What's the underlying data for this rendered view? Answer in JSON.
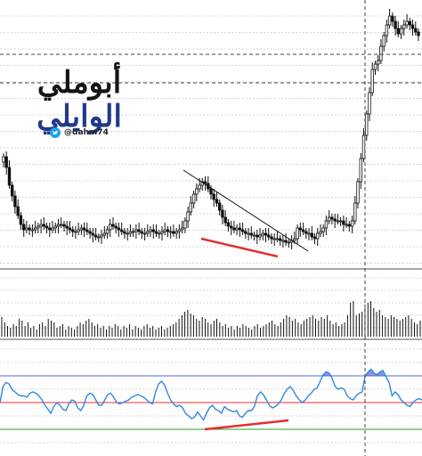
{
  "branding": {
    "name_part1": "أبوملي",
    "name_part2": "الوايلي",
    "handle": "@dahm74",
    "accent_color": "#1f3a8a",
    "icon": "twitter-bird-icon"
  },
  "colors": {
    "candle": "#111111",
    "grid": "#c8c8c8",
    "rsi_line": "#2f88e0",
    "rsi_fill": "#5b5fd6",
    "rsi_upper": "#4a6ad8",
    "rsi_mid": "#e03030",
    "rsi_lower": "#2a9a2a",
    "divergence": "#e03030",
    "trendline": "#111111"
  },
  "chart_data": [
    {
      "type": "candlestick",
      "title": "",
      "x_axis": "time",
      "y_axis": "price",
      "grid": true,
      "series": [
        {
          "name": "",
          "close": [
            96,
            90,
            80,
            74,
            68,
            63,
            58,
            55,
            56,
            55,
            55,
            56,
            57,
            58,
            57,
            56,
            55,
            56,
            57,
            58,
            58,
            57,
            56,
            55,
            54,
            54,
            55,
            56,
            55,
            54,
            53,
            52,
            51,
            51,
            52,
            53,
            55,
            58,
            57,
            56,
            55,
            54,
            53,
            53,
            54,
            54,
            55,
            54,
            53,
            53,
            54,
            55,
            54,
            53,
            53,
            54,
            55,
            54,
            54,
            53,
            54,
            55,
            56,
            60,
            65,
            70,
            75,
            78,
            80,
            82,
            81,
            78,
            75,
            72,
            70,
            66,
            62,
            59,
            57,
            56,
            55,
            56,
            55,
            54,
            53,
            53,
            52,
            52,
            51,
            52,
            53,
            52,
            51,
            50,
            50,
            50,
            49,
            49,
            48,
            48,
            49,
            50,
            56,
            55,
            54,
            53,
            53,
            51,
            50,
            53,
            54,
            56,
            60,
            62,
            61,
            60,
            60,
            60,
            58,
            58,
            57,
            60,
            70,
            82,
            95,
            108,
            120,
            132,
            145,
            148,
            150,
            158,
            164,
            170,
            175,
            172,
            168,
            165,
            168,
            170,
            172,
            170,
            168,
            166,
            164
          ]
        }
      ]
    },
    {
      "type": "bar",
      "title": "",
      "y_axis": "volume",
      "series": [
        {
          "name": "",
          "values": [
            0.55,
            0.4,
            0.3,
            0.25,
            0.35,
            0.3,
            0.5,
            0.45,
            0.3,
            0.4,
            0.25,
            0.3,
            0.2,
            0.35,
            0.4,
            0.3,
            0.5,
            0.45,
            0.4,
            0.25,
            0.3,
            0.35,
            0.2,
            0.3,
            0.25,
            0.2,
            0.3,
            0.4,
            0.35,
            0.45,
            0.5,
            0.4,
            0.3,
            0.35,
            0.25,
            0.3,
            0.2,
            0.3,
            0.25,
            0.35,
            0.3,
            0.2,
            0.3,
            0.25,
            0.35,
            0.2,
            0.3,
            0.25,
            0.2,
            0.3,
            0.35,
            0.25,
            0.3,
            0.2,
            0.25,
            0.3,
            0.2,
            0.25,
            0.3,
            0.35,
            0.4,
            0.5,
            0.6,
            0.7,
            0.75,
            0.65,
            0.6,
            0.5,
            0.45,
            0.55,
            0.5,
            0.4,
            0.35,
            0.45,
            0.5,
            0.4,
            0.3,
            0.35,
            0.25,
            0.3,
            0.2,
            0.3,
            0.25,
            0.35,
            0.3,
            0.25,
            0.2,
            0.3,
            0.35,
            0.25,
            0.3,
            0.35,
            0.4,
            0.45,
            0.35,
            0.3,
            0.4,
            0.5,
            0.6,
            0.55,
            0.45,
            0.5,
            0.4,
            0.35,
            0.45,
            0.5,
            0.55,
            0.6,
            0.5,
            0.45,
            0.55,
            0.5,
            0.6,
            0.45,
            0.35,
            0.4,
            0.3,
            0.35,
            0.4,
            0.6,
            0.95,
            1.0,
            0.6,
            0.65,
            0.7,
            0.9,
            0.95,
            1.0,
            0.8,
            0.7,
            0.75,
            0.6,
            0.55,
            0.5,
            0.6,
            0.55,
            0.5,
            0.45,
            0.5,
            0.55,
            0.6,
            0.5,
            0.4,
            0.35,
            0.45
          ]
        }
      ]
    },
    {
      "type": "line",
      "title": "",
      "y_axis": "rsi",
      "ylim": [
        30,
        75
      ],
      "levels": [
        70,
        50,
        30
      ],
      "series": [
        {
          "name": "",
          "values": [
            50,
            62,
            65,
            64,
            60,
            58,
            56,
            55,
            55,
            54,
            57,
            58,
            57,
            55,
            52,
            48,
            45,
            42,
            47,
            50,
            48,
            45,
            44,
            49,
            52,
            51,
            46,
            44,
            48,
            55,
            57,
            56,
            52,
            48,
            48,
            52,
            56,
            57,
            54,
            50,
            49,
            50,
            51,
            52,
            54,
            55,
            56,
            55,
            54,
            52,
            50,
            49,
            58,
            64,
            66,
            63,
            57,
            52,
            49,
            47,
            48,
            46,
            42,
            40,
            38,
            39,
            43,
            40,
            37,
            42,
            46,
            48,
            45,
            44,
            42,
            47,
            45,
            44,
            43,
            44,
            40,
            39,
            42,
            44,
            44,
            47,
            55,
            58,
            56,
            52,
            48,
            46,
            47,
            49,
            52,
            57,
            60,
            62,
            59,
            55,
            52,
            50,
            52,
            55,
            57,
            60,
            61,
            66,
            71,
            73,
            72,
            68,
            62,
            60,
            61,
            60,
            55,
            53,
            52,
            55,
            57,
            58,
            70,
            73,
            75,
            72,
            71,
            73,
            74,
            69,
            65,
            55,
            58,
            56,
            52,
            50,
            48,
            47,
            50,
            52,
            53,
            52
          ]
        }
      ]
    }
  ]
}
